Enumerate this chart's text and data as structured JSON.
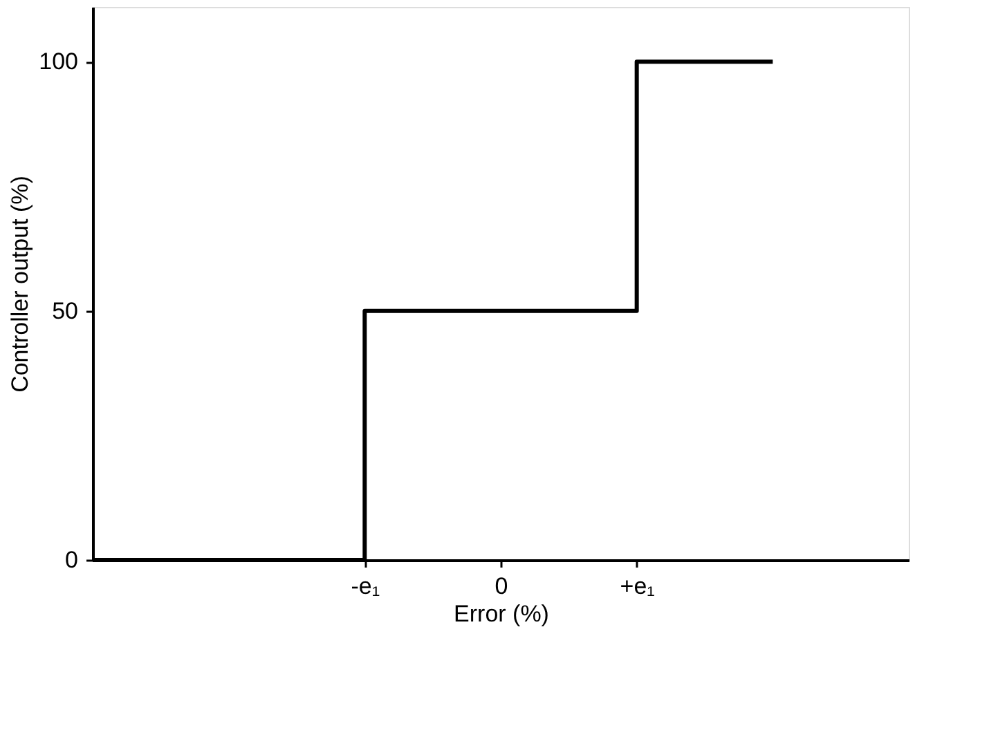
{
  "chart_data": {
    "type": "step",
    "xlabel": "Error (%)",
    "ylabel": "Controller output (%)",
    "categories": [
      null,
      null,
      "-e₁",
      "0",
      "+e₁",
      null,
      null
    ],
    "series": [
      {
        "color": "#000000",
        "values": [
          0,
          0,
          50,
          50,
          100,
          100,
          null
        ]
      }
    ],
    "ylim": [
      0,
      111
    ],
    "yticks": [
      0,
      50,
      100
    ],
    "grid": false,
    "marker": "none",
    "line_style": "solid"
  }
}
